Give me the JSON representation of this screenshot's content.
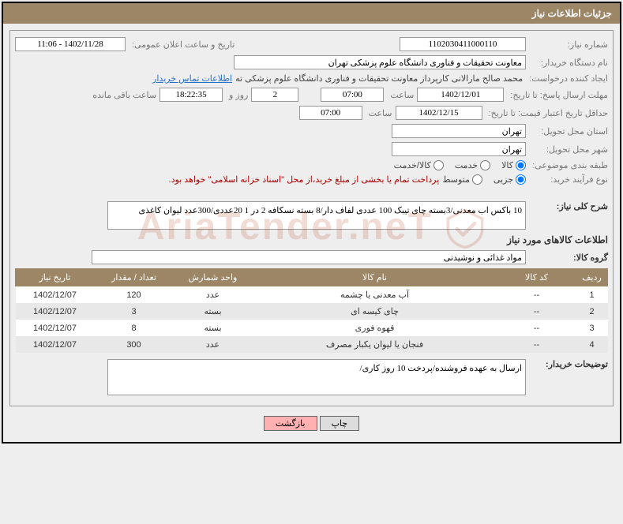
{
  "header_title": "جزئیات اطلاعات نیاز",
  "need_number_label": "شماره نیاز:",
  "need_number": "1102030411000110",
  "announce_label": "تاریخ و ساعت اعلان عمومی:",
  "announce_value": "1402/11/28 - 11:06",
  "buyer_org_label": "نام دستگاه خریدار:",
  "buyer_org": "معاونت تحقیقات و فناوری دانشگاه علوم پزشکی تهران",
  "requester_label": "ایجاد کننده درخواست:",
  "requester": "محمد صالح مارالانی کارپرداز معاونت تحقیقات و فناوری دانشگاه علوم پزشکی ته",
  "contact_link": "اطلاعات تماس خریدار",
  "deadline_label": "مهلت ارسال پاسخ: تا تاریخ:",
  "deadline_date": "1402/12/01",
  "time_label": "ساعت",
  "deadline_time": "07:00",
  "remain_days": "2",
  "remain_days_label": "روز و",
  "remain_time": "18:22:35",
  "remain_suffix": "ساعت باقی مانده",
  "validity_label": "حداقل تاریخ اعتبار قیمت: تا تاریخ:",
  "validity_date": "1402/12/15",
  "validity_time": "07:00",
  "province_label": "استان محل تحویل:",
  "province": "تهران",
  "city_label": "شهر محل تحویل:",
  "city": "تهران",
  "category_label": "طبقه بندی موضوعی:",
  "cat_goods": "کالا",
  "cat_service": "خدمت",
  "cat_both": "کالا/خدمت",
  "process_label": "نوع فرآیند خرید:",
  "proc_minor": "جزیی",
  "proc_medium": "متوسط",
  "process_note": "پرداخت تمام یا بخشی از مبلغ خرید،از محل \"اسناد خزانه اسلامی\" خواهد بود.",
  "desc_label": "شرح کلی نیاز:",
  "desc_text": "10 باکس اب معدنی/3بسته چای تیبک 100 عددی لفاف دار/8 بسته نسکافه 2 در 1 20عددی/300عدد لیوان کاغذی",
  "items_title": "اطلاعات کالاهای مورد نیاز",
  "group_label": "گروه کالا:",
  "group_value": "مواد غذائی و نوشیدنی",
  "columns": {
    "row": "ردیف",
    "code": "کد کالا",
    "name": "نام کالا",
    "unit": "واحد شمارش",
    "qty": "تعداد / مقدار",
    "need_date": "تاریخ نیاز"
  },
  "rows": [
    {
      "row": "1",
      "code": "--",
      "name": "آب معدنی یا چشمه",
      "unit": "عدد",
      "qty": "120",
      "need_date": "1402/12/07"
    },
    {
      "row": "2",
      "code": "--",
      "name": "چای کیسه ای",
      "unit": "بسته",
      "qty": "3",
      "need_date": "1402/12/07"
    },
    {
      "row": "3",
      "code": "--",
      "name": "قهوه فوری",
      "unit": "بسته",
      "qty": "8",
      "need_date": "1402/12/07"
    },
    {
      "row": "4",
      "code": "--",
      "name": "فنجان یا لیوان یکبار مصرف",
      "unit": "عدد",
      "qty": "300",
      "need_date": "1402/12/07"
    }
  ],
  "buyer_note_label": "توضیحات خریدار:",
  "buyer_note": "ارسال به عهده فروشنده/پردخت 10 روز کاری/",
  "btn_print": "چاپ",
  "btn_back": "بازگشت",
  "watermark_text": "AriaTender.neT"
}
